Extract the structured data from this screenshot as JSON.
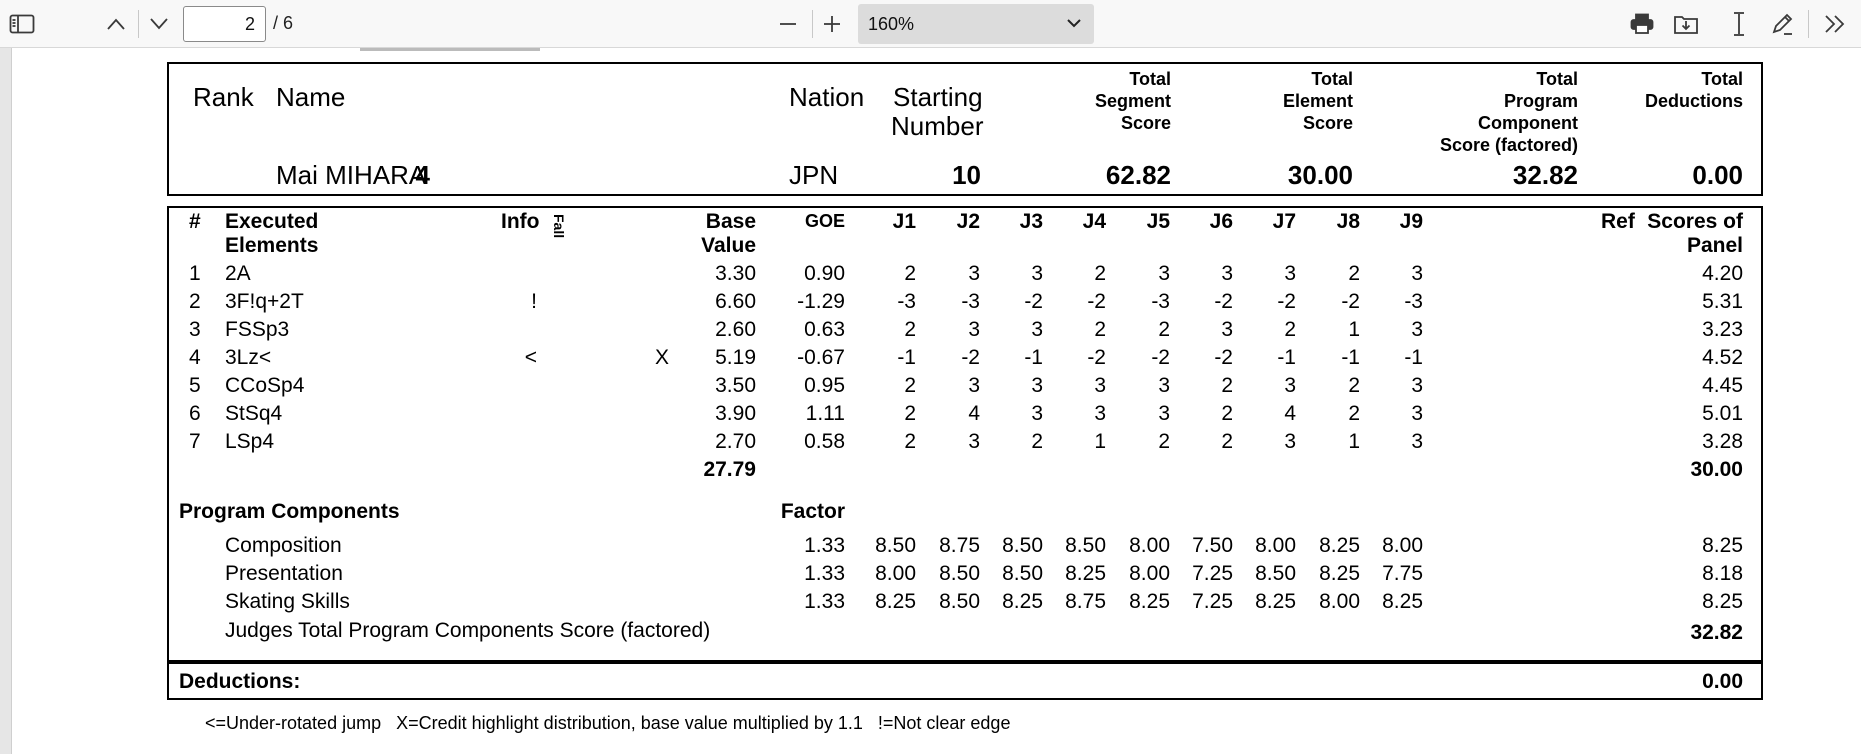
{
  "toolbar": {
    "current_page": "2",
    "page_total": "/ 6",
    "zoom_value": "160%"
  },
  "header": {
    "labels": {
      "rank": "Rank",
      "name": "Name",
      "nation": "Nation",
      "starting_1": "Starting",
      "starting_2": "Number",
      "tss_1": "Total",
      "tss_2": "Segment",
      "tss_3": "Score",
      "tes_1": "Total",
      "tes_2": "Element",
      "tes_3": "Score",
      "pcs_1": "Total",
      "pcs_2": "Program",
      "pcs_3": "Component",
      "pcs_4": "Score (factored)",
      "ded_1": "Total",
      "ded_2": "Deductions"
    },
    "skater": {
      "rank": "4",
      "name": "Mai MIHARA",
      "nation": "JPN",
      "starting_number": "10",
      "total_segment_score": "62.82",
      "total_element_score": "30.00",
      "total_pcs": "32.82",
      "total_deductions": "0.00"
    }
  },
  "elements_table": {
    "col_labels": {
      "num": "#",
      "exec_1": "Executed",
      "exec_2": "Elements",
      "info": "Info",
      "fall": "Fall",
      "base_1": "Base",
      "base_2": "Value",
      "goe": "GOE",
      "judges": [
        "J1",
        "J2",
        "J3",
        "J4",
        "J5",
        "J6",
        "J7",
        "J8",
        "J9"
      ],
      "ref": "Ref",
      "scores_1": "Scores of",
      "scores_2": "Panel"
    },
    "rows": [
      {
        "num": "1",
        "element": "2A",
        "info": "",
        "base": "3.30",
        "x": "",
        "goe": "0.90",
        "judges": [
          "2",
          "3",
          "3",
          "2",
          "3",
          "3",
          "3",
          "2",
          "3"
        ],
        "score": "4.20"
      },
      {
        "num": "2",
        "element": "3F!q+2T",
        "info": "!",
        "base": "6.60",
        "x": "",
        "goe": "-1.29",
        "judges": [
          "-3",
          "-3",
          "-2",
          "-2",
          "-3",
          "-2",
          "-2",
          "-2",
          "-3"
        ],
        "score": "5.31"
      },
      {
        "num": "3",
        "element": "FSSp3",
        "info": "",
        "base": "2.60",
        "x": "",
        "goe": "0.63",
        "judges": [
          "2",
          "3",
          "3",
          "2",
          "2",
          "3",
          "2",
          "1",
          "3"
        ],
        "score": "3.23"
      },
      {
        "num": "4",
        "element": "3Lz<",
        "info": "<",
        "base": "5.19",
        "x": "X",
        "goe": "-0.67",
        "judges": [
          "-1",
          "-2",
          "-1",
          "-2",
          "-2",
          "-2",
          "-1",
          "-1",
          "-1"
        ],
        "score": "4.52"
      },
      {
        "num": "5",
        "element": "CCoSp4",
        "info": "",
        "base": "3.50",
        "x": "",
        "goe": "0.95",
        "judges": [
          "2",
          "3",
          "3",
          "3",
          "3",
          "2",
          "3",
          "2",
          "3"
        ],
        "score": "4.45"
      },
      {
        "num": "6",
        "element": "StSq4",
        "info": "",
        "base": "3.90",
        "x": "",
        "goe": "1.11",
        "judges": [
          "2",
          "4",
          "3",
          "3",
          "3",
          "2",
          "4",
          "2",
          "3"
        ],
        "score": "5.01"
      },
      {
        "num": "7",
        "element": "LSp4",
        "info": "",
        "base": "2.70",
        "x": "",
        "goe": "0.58",
        "judges": [
          "2",
          "3",
          "2",
          "1",
          "2",
          "2",
          "3",
          "1",
          "3"
        ],
        "score": "3.28"
      }
    ],
    "base_total": "27.79",
    "score_total": "30.00"
  },
  "program_components": {
    "title": "Program Components",
    "factor_label": "Factor",
    "rows": [
      {
        "name": "Composition",
        "factor": "1.33",
        "judges": [
          "8.50",
          "8.75",
          "8.50",
          "8.50",
          "8.00",
          "7.50",
          "8.00",
          "8.25",
          "8.00"
        ],
        "score": "8.25"
      },
      {
        "name": "Presentation",
        "factor": "1.33",
        "judges": [
          "8.00",
          "8.50",
          "8.50",
          "8.25",
          "8.00",
          "7.25",
          "8.50",
          "8.25",
          "7.75"
        ],
        "score": "8.18"
      },
      {
        "name": "Skating Skills",
        "factor": "1.33",
        "judges": [
          "8.25",
          "8.50",
          "8.25",
          "8.75",
          "8.25",
          "7.25",
          "8.25",
          "8.00",
          "8.25"
        ],
        "score": "8.25"
      }
    ],
    "judges_total_label": "Judges Total Program Components Score (factored)",
    "judges_total": "32.82"
  },
  "deductions": {
    "label": "Deductions:",
    "value": "0.00"
  },
  "legend": "<=Under-rotated jump   X=Credit highlight distribution, base value multiplied by 1.1   !=Not clear edge"
}
